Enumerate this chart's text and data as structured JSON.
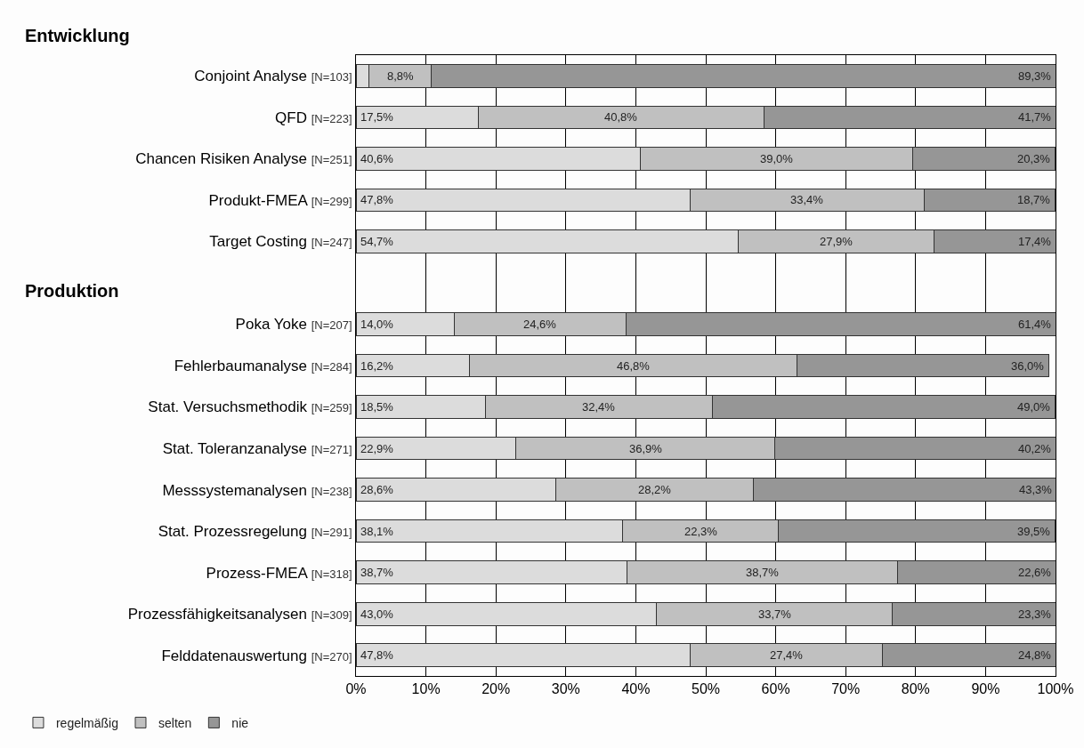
{
  "chart_data": {
    "type": "bar",
    "orientation": "horizontal",
    "stacked": true,
    "categories": [
      "Conjoint Analyse [N=103]",
      "QFD [N=223]",
      "Chancen Risiken Analyse [N=251]",
      "Produkt-FMEA [N=299]",
      "Target Costing [N=247]",
      null,
      "Poka Yoke [N=207]",
      "Fehlerbaumanalyse [N=284]",
      "Stat. Versuchsmethodik [N=259]",
      "Stat. Toleranzanalyse [N=271]",
      "Messsystemanalysen [N=238]",
      "Stat. Prozessregelung [N=291]",
      "Prozess-FMEA [N=318]",
      "Prozessfähigkeitsanalysen [N=309]",
      "Felddatenauswertung [N=270]"
    ],
    "series": [
      {
        "name": "regelmäßig",
        "color": "#dcdcdc",
        "values": [
          1.9,
          17.5,
          40.6,
          47.8,
          54.7,
          null,
          14.0,
          16.2,
          18.5,
          22.9,
          28.6,
          38.1,
          38.7,
          43.0,
          47.8
        ],
        "value_labels": [
          null,
          "17,5%",
          "40,6%",
          "47,8%",
          "54,7%",
          null,
          "14,0%",
          "16,2%",
          "18,5%",
          "22,9%",
          "28,6%",
          "38,1%",
          "38,7%",
          "43,0%",
          "47,8%"
        ]
      },
      {
        "name": "selten",
        "color": "#c0c0c0",
        "values": [
          8.8,
          40.8,
          39.0,
          33.4,
          27.9,
          null,
          24.6,
          46.8,
          32.4,
          36.9,
          28.2,
          22.3,
          38.7,
          33.7,
          27.4
        ],
        "value_labels": [
          "8,8%",
          "40,8%",
          "39,0%",
          "33,4%",
          "27,9%",
          null,
          "24,6%",
          "46,8%",
          "32,4%",
          "36,9%",
          "28,2%",
          "22,3%",
          "38,7%",
          "33,7%",
          "27,4%"
        ]
      },
      {
        "name": "nie",
        "color": "#969696",
        "values": [
          89.3,
          41.7,
          20.3,
          18.7,
          17.4,
          null,
          61.4,
          36.0,
          49.0,
          40.2,
          43.3,
          39.5,
          22.6,
          23.3,
          24.8
        ],
        "value_labels": [
          "89,3%",
          "41,7%",
          "20,3%",
          "18,7%",
          "17,4%",
          null,
          "61,4%",
          "36,0%",
          "49,0%",
          "40,2%",
          "43,3%",
          "39,5%",
          "22,6%",
          "23,3%",
          "24,8%"
        ]
      }
    ],
    "annotations": [
      "Entwicklung",
      "Produktion"
    ],
    "xlim": [
      0,
      100
    ],
    "xticks": [
      {
        "value": 0,
        "label": "0%"
      },
      {
        "value": 10,
        "label": "10%"
      },
      {
        "value": 20,
        "label": "20%"
      },
      {
        "value": 30,
        "label": "30%"
      },
      {
        "value": 40,
        "label": "40%"
      },
      {
        "value": 50,
        "label": "50%"
      },
      {
        "value": 60,
        "label": "60%"
      },
      {
        "value": 70,
        "label": "70%"
      },
      {
        "value": 80,
        "label": "80%"
      },
      {
        "value": 90,
        "label": "90%"
      },
      {
        "value": 100,
        "label": "100%"
      }
    ],
    "grid": "x",
    "legend": "bottom left"
  }
}
